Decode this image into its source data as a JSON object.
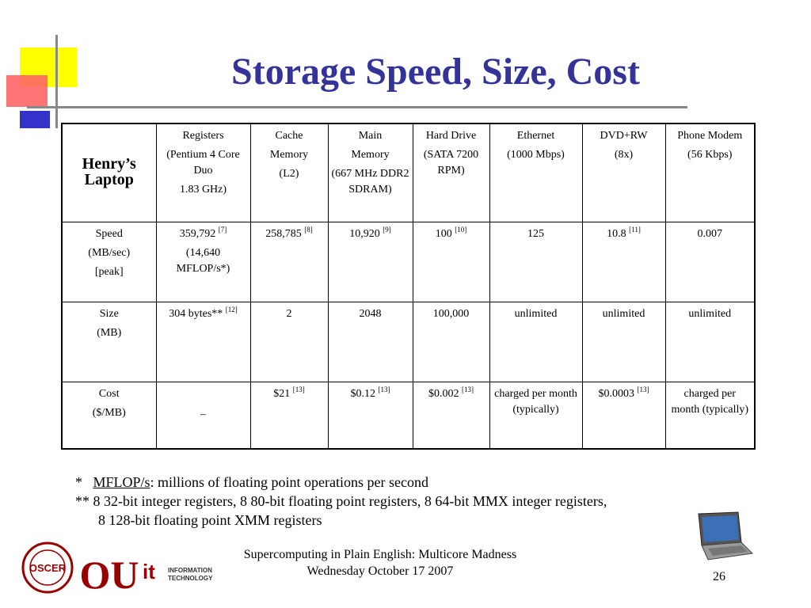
{
  "title": "Storage Speed, Size, Cost",
  "table": {
    "corner": "Henry’s Laptop",
    "columns": [
      {
        "lines": [
          "Registers",
          "(Pentium 4 Core Duo",
          "1.83 GHz)"
        ]
      },
      {
        "lines": [
          "Cache",
          "Memory",
          "(L2)"
        ]
      },
      {
        "lines": [
          "Main",
          "Memory",
          "(667 MHz DDR2 SDRAM)"
        ]
      },
      {
        "lines": [
          "Hard Drive",
          "(SATA 7200 RPM)"
        ]
      },
      {
        "lines": [
          "Ethernet",
          "(1000 Mbps)"
        ]
      },
      {
        "lines": [
          "DVD+RW",
          "(8x)"
        ]
      },
      {
        "lines": [
          "Phone Modem",
          "(56 Kbps)"
        ]
      }
    ],
    "rows": [
      {
        "label": [
          "Speed",
          "(MB/sec)",
          "[peak]"
        ],
        "cells": [
          {
            "value": "359,792",
            "ref": "[7]",
            "extra": [
              "(14,640",
              "MFLOP/s*)"
            ]
          },
          {
            "value": "258,785",
            "ref": "[8]"
          },
          {
            "value": "10,920",
            "ref": "[9]"
          },
          {
            "value": "100",
            "ref": "[10]"
          },
          {
            "value": "125",
            "ref": ""
          },
          {
            "value": "10.8",
            "ref": "[11]"
          },
          {
            "value": "0.007",
            "ref": ""
          }
        ]
      },
      {
        "label": [
          "Size",
          "(MB)"
        ],
        "cells": [
          {
            "value": "304 bytes**",
            "ref": "[12]"
          },
          {
            "value": "2",
            "ref": ""
          },
          {
            "value": "2048",
            "ref": ""
          },
          {
            "value": "100,000",
            "ref": ""
          },
          {
            "value": "unlimited",
            "ref": ""
          },
          {
            "value": "unlimited",
            "ref": ""
          },
          {
            "value": "unlimited",
            "ref": ""
          }
        ]
      },
      {
        "label": [
          "Cost",
          "($/MB)"
        ],
        "cells": [
          {
            "value": "–",
            "ref": ""
          },
          {
            "value": "$21",
            "ref": "[13]"
          },
          {
            "value": "$0.12",
            "ref": "[13]"
          },
          {
            "value": "$0.002",
            "ref": "[13]"
          },
          {
            "value": "charged per month (typically)",
            "ref": ""
          },
          {
            "value": "$0.0003",
            "ref": "[13]"
          },
          {
            "value": "charged per month (typically)",
            "ref": ""
          }
        ]
      }
    ]
  },
  "footnotes": {
    "fn1_marker": "*",
    "fn1_term": "MFLOP/s",
    "fn1_text": ": millions of floating point operations per second",
    "fn2_line1": "** 8 32-bit integer registers, 8 80-bit floating point registers, 8 64-bit MMX integer registers,",
    "fn2_line2": "8 128-bit floating point XMM registers"
  },
  "footer": {
    "line1": "Supercomputing in Plain English: Multicore Madness",
    "line2": "Wednesday October 17 2007"
  },
  "page_number": "26",
  "logos": {
    "oscer": "OSCER",
    "ou": "OU",
    "it_line1": "INFORMATION",
    "it_line2": "TECHNOLOGY"
  },
  "colors": {
    "title": "#333399",
    "accent_yellow": "#ffff00",
    "accent_red": "#ff6666",
    "accent_blue": "#3333cc"
  }
}
